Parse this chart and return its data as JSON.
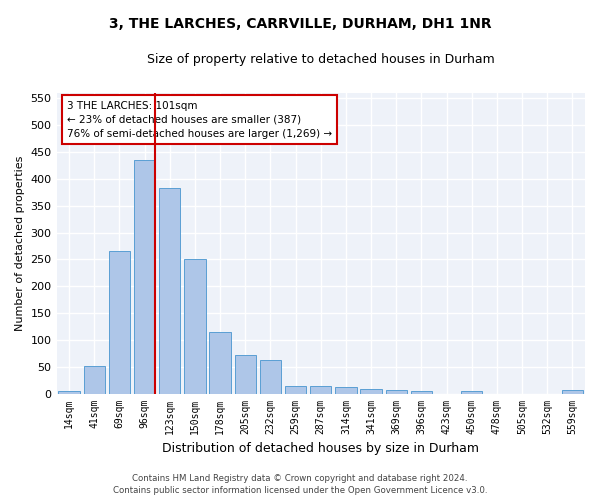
{
  "title": "3, THE LARCHES, CARRVILLE, DURHAM, DH1 1NR",
  "subtitle": "Size of property relative to detached houses in Durham",
  "xlabel": "Distribution of detached houses by size in Durham",
  "ylabel": "Number of detached properties",
  "categories": [
    "14sqm",
    "41sqm",
    "69sqm",
    "96sqm",
    "123sqm",
    "150sqm",
    "178sqm",
    "205sqm",
    "232sqm",
    "259sqm",
    "287sqm",
    "314sqm",
    "341sqm",
    "369sqm",
    "396sqm",
    "423sqm",
    "450sqm",
    "478sqm",
    "505sqm",
    "532sqm",
    "559sqm"
  ],
  "values": [
    4,
    52,
    265,
    435,
    383,
    250,
    115,
    72,
    62,
    15,
    15,
    12,
    8,
    6,
    4,
    0,
    4,
    0,
    0,
    0,
    6
  ],
  "bar_color": "#aec6e8",
  "bar_edge_color": "#5a9fd4",
  "background_color": "#eef2f9",
  "grid_color": "#ffffff",
  "vline_x": 3.43,
  "vline_color": "#cc0000",
  "ylim": [
    0,
    560
  ],
  "yticks": [
    0,
    50,
    100,
    150,
    200,
    250,
    300,
    350,
    400,
    450,
    500,
    550
  ],
  "annotation_text": "3 THE LARCHES: 101sqm\n← 23% of detached houses are smaller (387)\n76% of semi-detached houses are larger (1,269) →",
  "annotation_box_color": "#ffffff",
  "annotation_box_edge_color": "#cc0000",
  "footer_line1": "Contains HM Land Registry data © Crown copyright and database right 2024.",
  "footer_line2": "Contains public sector information licensed under the Open Government Licence v3.0.",
  "title_fontsize": 10,
  "subtitle_fontsize": 9,
  "ylabel_fontsize": 8,
  "xlabel_fontsize": 9,
  "tick_fontsize": 8,
  "xtick_fontsize": 7
}
